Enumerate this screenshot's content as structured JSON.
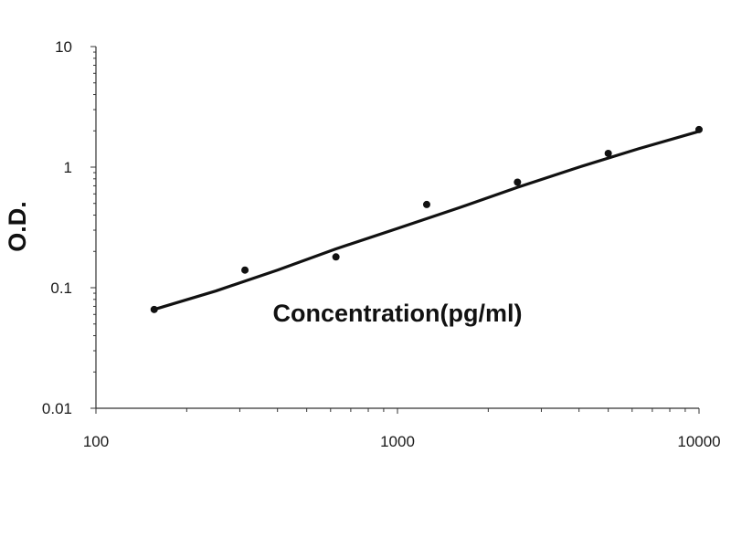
{
  "chart_data": {
    "type": "scatter",
    "title": "",
    "xlabel": "Concentration(pg/ml)",
    "ylabel": "O.D.",
    "x_scale": "log",
    "y_scale": "log",
    "xlim": [
      100,
      10000
    ],
    "ylim": [
      0.01,
      10
    ],
    "x_tick_labels": [
      "100",
      "1000",
      "10000"
    ],
    "x_tick_values": [
      100,
      1000,
      10000
    ],
    "y_tick_labels": [
      "0.01",
      "0.1",
      "1",
      "10"
    ],
    "y_tick_values": [
      0.01,
      0.1,
      1,
      10
    ],
    "grid": false,
    "legend": "none",
    "series": [
      {
        "kind": "points",
        "x": [
          156,
          312,
          625,
          1250,
          2500,
          5000,
          10000
        ],
        "y": [
          0.066,
          0.14,
          0.18,
          0.49,
          0.75,
          1.3,
          2.05
        ]
      },
      {
        "kind": "fit-line",
        "x": [
          156,
          250,
          400,
          625,
          1000,
          1600,
          2500,
          4000,
          6300,
          10000
        ],
        "y": [
          0.066,
          0.094,
          0.14,
          0.21,
          0.31,
          0.46,
          0.68,
          1.0,
          1.42,
          1.98
        ]
      }
    ],
    "colors": {
      "points": "#111111",
      "line": "#111111",
      "axis": "#333333"
    }
  }
}
